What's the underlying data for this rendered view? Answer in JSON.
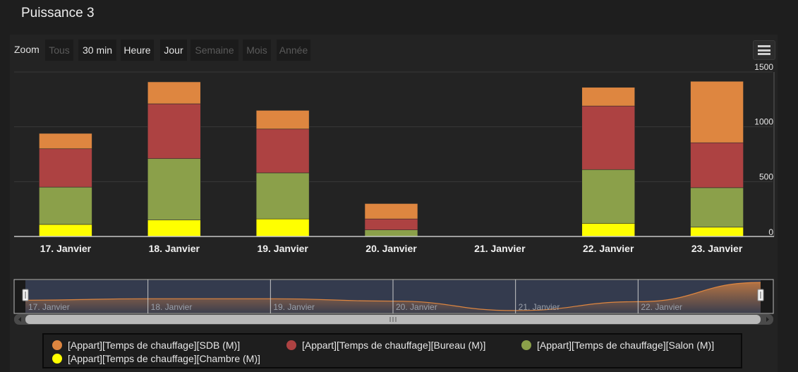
{
  "page": {
    "title": "Puissance 3"
  },
  "zoom": {
    "label": "Zoom",
    "buttons": [
      {
        "label": "Tous",
        "enabled": false
      },
      {
        "label": "30 min",
        "enabled": true
      },
      {
        "label": "Heure",
        "enabled": true
      },
      {
        "label": "Jour",
        "enabled": true
      },
      {
        "label": "Semaine",
        "enabled": false
      },
      {
        "label": "Mois",
        "enabled": false
      },
      {
        "label": "Année",
        "enabled": false
      }
    ]
  },
  "menu": {
    "icon": "hamburger-menu-icon"
  },
  "chart_data": {
    "type": "bar",
    "stacked": true,
    "categories": [
      "17. Janvier",
      "18. Janvier",
      "19. Janvier",
      "20. Janvier",
      "21. Janvier",
      "22. Janvier",
      "23. Janvier"
    ],
    "series": [
      {
        "name": "[Appart][Temps de chauffage][Chambre (M)]",
        "color": "#ffff00",
        "values": [
          110,
          150,
          160,
          0,
          0,
          120,
          85
        ]
      },
      {
        "name": "[Appart][Temps de chauffage][Salon (M)]",
        "color": "#8ba04a",
        "values": [
          340,
          560,
          420,
          60,
          0,
          490,
          360
        ]
      },
      {
        "name": "[Appart][Temps de chauffage][Bureau (M)]",
        "color": "#ad4242",
        "values": [
          350,
          500,
          400,
          100,
          0,
          580,
          410
        ]
      },
      {
        "name": "[Appart][Temps de chauffage][SDB (M)]",
        "color": "#de8640",
        "values": [
          140,
          200,
          170,
          140,
          0,
          170,
          560
        ]
      }
    ],
    "y_ticks": [
      "0",
      "500",
      "1000",
      "1500"
    ],
    "ylim": [
      0,
      1500
    ],
    "y_axis_side": "right",
    "grid": true,
    "legend_position": "bottom",
    "legend_order": [
      3,
      2,
      1,
      0
    ],
    "navigator": {
      "labels": [
        "17. Janvier",
        "18. Janvier",
        "19. Janvier",
        "20. Janvier",
        "21. Janvier",
        "22. Janvier"
      ],
      "trend_values": [
        35,
        40,
        40,
        32,
        0,
        30,
        95
      ]
    }
  }
}
